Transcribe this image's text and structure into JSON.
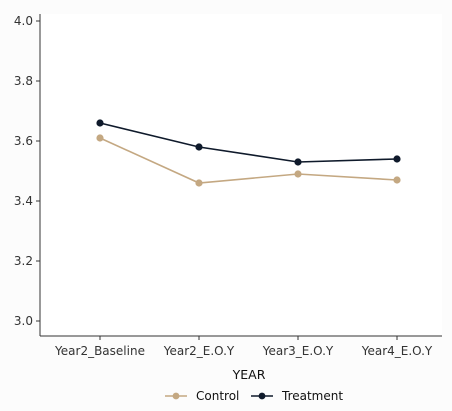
{
  "chart_data": {
    "type": "line",
    "title": "",
    "xlabel": "YEAR",
    "ylabel": "",
    "categories": [
      "Year2_Baseline",
      "Year2_E.O.Y",
      "Year3_E.O.Y",
      "Year4_E.O.Y"
    ],
    "ylim": [
      3.0,
      4.0
    ],
    "yticks": [
      "3.0",
      "3.2",
      "3.4",
      "3.6",
      "3.8",
      "4.0"
    ],
    "grid": false,
    "legend_position": "bottom",
    "series": [
      {
        "name": "Control",
        "color": "#c4a882",
        "values": [
          3.61,
          3.46,
          3.49,
          3.47
        ]
      },
      {
        "name": "Treatment",
        "color": "#0f1a2b",
        "values": [
          3.66,
          3.58,
          3.53,
          3.54
        ]
      }
    ]
  }
}
